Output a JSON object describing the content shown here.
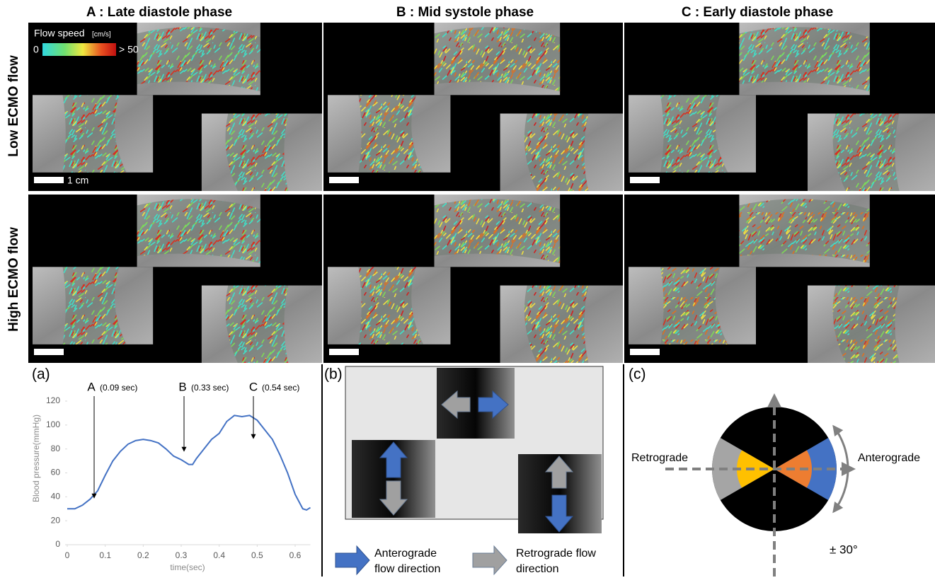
{
  "figure": {
    "columns": [
      "A : Late diastole phase",
      "B : Mid systole phase",
      "C : Early diastole phase"
    ],
    "rows": [
      "Low ECMO flow",
      "High ECMO flow"
    ],
    "colorbar": {
      "title": "Flow speed",
      "unit": "[cm/s]",
      "min": "0",
      "max": "> 50"
    },
    "scale_bar": "1 cm"
  },
  "chart_data": {
    "type": "line",
    "label": "(a)",
    "x": [
      0,
      0.02,
      0.04,
      0.06,
      0.08,
      0.1,
      0.12,
      0.14,
      0.16,
      0.18,
      0.2,
      0.22,
      0.24,
      0.26,
      0.28,
      0.3,
      0.32,
      0.33,
      0.34,
      0.36,
      0.38,
      0.4,
      0.42,
      0.44,
      0.46,
      0.48,
      0.5,
      0.52,
      0.54,
      0.56,
      0.58,
      0.6,
      0.62,
      0.63,
      0.64
    ],
    "values": [
      30,
      30,
      33,
      38,
      45,
      58,
      70,
      78,
      84,
      87,
      88,
      87,
      85,
      80,
      74,
      71,
      67,
      67,
      72,
      80,
      88,
      93,
      103,
      108,
      107,
      108,
      104,
      96,
      88,
      75,
      60,
      42,
      30,
      29,
      31
    ],
    "color": "#4472c4",
    "xlim": [
      0,
      0.64
    ],
    "ylim": [
      0,
      120
    ],
    "xticks": [
      0,
      0.1,
      0.2,
      0.3,
      0.4,
      0.5,
      0.6
    ],
    "yticks": [
      0,
      20,
      40,
      60,
      80,
      100,
      120
    ],
    "xlabel": "time(sec)",
    "ylabel": "Blood pressure(mmHg)",
    "annotations": [
      {
        "letter": "A",
        "time": "(0.09 sec)"
      },
      {
        "letter": "B",
        "time": "(0.33 sec)"
      },
      {
        "letter": "C",
        "time": "(0.54 sec)"
      }
    ]
  },
  "panel_b": {
    "label": "(b)",
    "legend": [
      {
        "lines": [
          "Anterograde",
          "flow direction"
        ]
      },
      {
        "lines": [
          "Retrograde flow",
          "direction"
        ]
      }
    ]
  },
  "panel_c": {
    "label": "(c)",
    "left": "Retrograde",
    "right": "Anterograde",
    "angle": "± 30°"
  }
}
